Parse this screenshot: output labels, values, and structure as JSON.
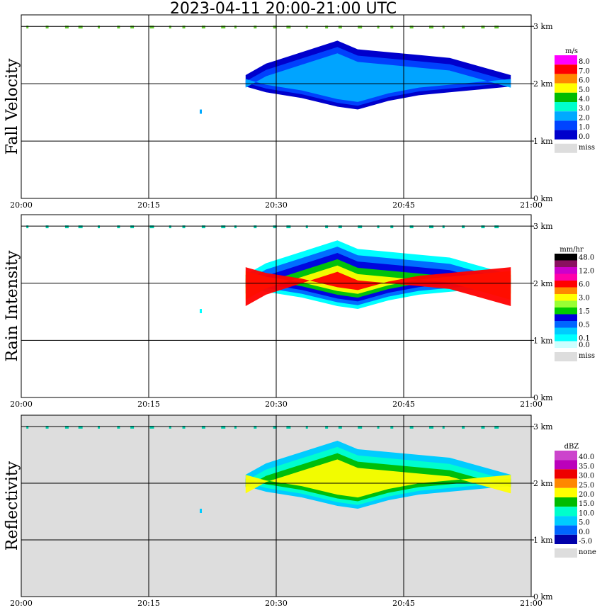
{
  "title": "2023-04-11   20:00-21:00 UTC",
  "chart_data": [
    {
      "type": "heatmap",
      "ylabel": "Fall Velocity",
      "x_ticks": [
        "20:00",
        "20:15",
        "20:30",
        "20:45",
        "21:00"
      ],
      "y_ticks": [
        "0 km",
        "1 km",
        "2 km",
        "3 km"
      ],
      "background": "#ffffff",
      "legend": {
        "unit": "m/s",
        "levels": [
          {
            "label": "8.0",
            "color": "#ff00ff"
          },
          {
            "label": "7.0",
            "color": "#ff0000"
          },
          {
            "label": "6.0",
            "color": "#ff8800"
          },
          {
            "label": "5.0",
            "color": "#ffff00"
          },
          {
            "label": "4.0",
            "color": "#00bb00"
          },
          {
            "label": "3.0",
            "color": "#00ffcc"
          },
          {
            "label": "2.0",
            "color": "#00aaff"
          },
          {
            "label": "1.0",
            "color": "#0044ff"
          },
          {
            "label": "0.0",
            "color": "#0000cc"
          }
        ],
        "missing": {
          "label": "miss",
          "color": "#dddddd"
        }
      }
    },
    {
      "type": "heatmap",
      "ylabel": "Rain Intensity",
      "x_ticks": [
        "20:00",
        "20:15",
        "20:30",
        "20:45",
        "21:00"
      ],
      "y_ticks": [
        "0 km",
        "1 km",
        "2 km",
        "3 km"
      ],
      "background": "#ffffff",
      "legend": {
        "unit": "mm/hr",
        "levels": [
          {
            "label": "48.0",
            "color": "#000000"
          },
          {
            "label": "",
            "color": "#8a1060"
          },
          {
            "label": "12.0",
            "color": "#cc00cc"
          },
          {
            "label": "",
            "color": "#ff00aa"
          },
          {
            "label": "6.0",
            "color": "#ff0000"
          },
          {
            "label": "",
            "color": "#ff8800"
          },
          {
            "label": "3.0",
            "color": "#ffff00"
          },
          {
            "label": "",
            "color": "#99ff33"
          },
          {
            "label": "1.5",
            "color": "#00cc00"
          },
          {
            "label": "",
            "color": "#0000dd"
          },
          {
            "label": "0.5",
            "color": "#0066ff"
          },
          {
            "label": "",
            "color": "#00ccff"
          },
          {
            "label": "0.1",
            "color": "#00ffff"
          },
          {
            "label": "0.0",
            "color": "#ccffff"
          }
        ],
        "missing": {
          "label": "miss",
          "color": "#dddddd"
        }
      }
    },
    {
      "type": "heatmap",
      "ylabel": "Reflectivity",
      "x_ticks": [
        "20:00",
        "20:15",
        "20:30",
        "20:45",
        "21:00"
      ],
      "y_ticks": [
        "0 km",
        "1 km",
        "2 km",
        "3 km"
      ],
      "background": "#dddddd",
      "legend": {
        "unit": "dBZ",
        "levels": [
          {
            "label": "40.0",
            "color": "#cc44cc"
          },
          {
            "label": "35.0",
            "color": "#bb00bb"
          },
          {
            "label": "30.0",
            "color": "#ee0000"
          },
          {
            "label": "25.0",
            "color": "#ff8800"
          },
          {
            "label": "20.0",
            "color": "#ffff00"
          },
          {
            "label": "15.0",
            "color": "#00bb00"
          },
          {
            "label": "10.0",
            "color": "#00ffcc"
          },
          {
            "label": "5.0",
            "color": "#00ccff"
          },
          {
            "label": "0.0",
            "color": "#0066ff"
          },
          {
            "label": "-5.0",
            "color": "#0000aa"
          }
        ],
        "missing": {
          "label": "none",
          "color": "#dddddd"
        }
      }
    }
  ]
}
